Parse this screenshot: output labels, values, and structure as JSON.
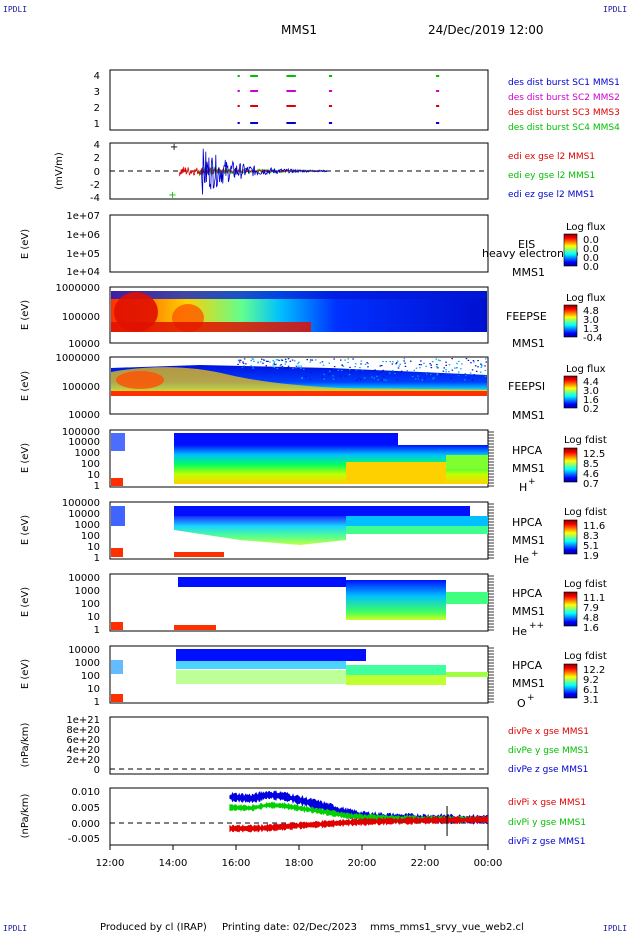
{
  "header": {
    "corner_tl": "IPDLI",
    "corner_tr": "IPDLI",
    "corner_bl": "IPDLI",
    "corner_br": "IPDLI",
    "mission": "MMS1",
    "datetime": "24/Dec/2019 12:00"
  },
  "footer": {
    "produced": "Produced by cl (IRAP)",
    "printed": "Printing date: 02/Dec/2023",
    "script": "mms_mms1_srvy_vue_web2.cl"
  },
  "colors": {
    "red": "#e00000",
    "green": "#00c000",
    "blue": "#0000d0",
    "magenta": "#d000d0",
    "black": "#000000"
  },
  "chart_data": {
    "type": "multi-panel time series / spectrogram",
    "x_ticks": [
      "12:00",
      "14:00",
      "16:00",
      "18:00",
      "20:00",
      "22:00",
      "00:00"
    ],
    "x_hours": [
      12,
      14,
      16,
      18,
      20,
      22,
      24
    ],
    "panels": [
      {
        "id": "burst",
        "type": "scatter",
        "ylabel": "",
        "yticks": [
          "4",
          "3",
          "2",
          "1"
        ],
        "legend": [
          {
            "label": "des dist burst SC1 MMS1",
            "color": "#0000d0"
          },
          {
            "label": "des dist burst SC2 MMS2",
            "color": "#d000d0"
          },
          {
            "label": "des dist burst SC3 MMS3",
            "color": "#e00000"
          },
          {
            "label": "des dist burst SC4 MMS4",
            "color": "#00c000"
          }
        ],
        "intervals_hours": [
          [
            16.05,
            16.12
          ],
          [
            16.45,
            16.7
          ],
          [
            17.6,
            17.9
          ],
          [
            18.95,
            19.05
          ],
          [
            22.35,
            22.45
          ]
        ]
      },
      {
        "id": "edi",
        "type": "line",
        "ylabel": "(mV/m)",
        "yticks": [
          "4",
          "2",
          "0",
          "-2",
          "-4"
        ],
        "ylim": [
          -4,
          4
        ],
        "legend": [
          {
            "label": "edi ex gse l2 MMS1",
            "color": "#e00000"
          },
          {
            "label": "edi ey gse l2 MMS1",
            "color": "#00c000"
          },
          {
            "label": "edi ez gse l2 MMS1",
            "color": "#0000d0"
          }
        ]
      },
      {
        "id": "eis",
        "type": "heatmap",
        "ylabel": "E (eV)",
        "yticks": [
          "1e+07",
          "1e+06",
          "1e+05",
          "1e+04"
        ],
        "side_labels": [
          "EIS",
          "heavy electron to",
          "MMS1"
        ],
        "cbar_title": "Log flux",
        "cbar_ticks": [
          "0.0",
          "0.0",
          "0.0",
          "0.0"
        ]
      },
      {
        "id": "feepse",
        "type": "heatmap",
        "ylabel": "E (eV)",
        "yticks": [
          "1000000",
          "100000",
          "10000"
        ],
        "side_labels": [
          "FEEPSE",
          "MMS1"
        ],
        "cbar_title": "Log flux",
        "cbar_ticks": [
          "4.8",
          "3.0",
          "1.3",
          "-0.4"
        ]
      },
      {
        "id": "feepsi",
        "type": "heatmap",
        "ylabel": "E (eV)",
        "yticks": [
          "1000000",
          "100000",
          "10000"
        ],
        "side_labels": [
          "FEEPSI",
          "MMS1"
        ],
        "cbar_title": "Log flux",
        "cbar_ticks": [
          "4.4",
          "3.0",
          "1.6",
          "0.2"
        ]
      },
      {
        "id": "hpca_h",
        "type": "heatmap",
        "ylabel": "E (eV)",
        "yticks": [
          "100000",
          "10000",
          "1000",
          "100",
          "10",
          "1"
        ],
        "side_labels": [
          "HPCA",
          "MMS1",
          "H",
          "+"
        ],
        "cbar_title": "Log fdist",
        "cbar_ticks": [
          "12.5",
          "8.5",
          "4.6",
          "0.7"
        ]
      },
      {
        "id": "hpca_he",
        "type": "heatmap",
        "ylabel": "E (eV)",
        "yticks": [
          "100000",
          "10000",
          "1000",
          "100",
          "10",
          "1"
        ],
        "side_labels": [
          "HPCA",
          "MMS1",
          "He",
          "+"
        ],
        "cbar_title": "Log fdist",
        "cbar_ticks": [
          "11.6",
          "8.3",
          "5.1",
          "1.9"
        ]
      },
      {
        "id": "hpca_he2",
        "type": "heatmap",
        "ylabel": "E (eV)",
        "yticks": [
          "10000",
          "1000",
          "100",
          "10",
          "1"
        ],
        "side_labels": [
          "HPCA",
          "MMS1",
          "He",
          "++"
        ],
        "cbar_title": "Log fdist",
        "cbar_ticks": [
          "11.1",
          "7.9",
          "4.8",
          "1.6"
        ]
      },
      {
        "id": "hpca_o",
        "type": "heatmap",
        "ylabel": "E (eV)",
        "yticks": [
          "10000",
          "1000",
          "100",
          "10",
          "1"
        ],
        "side_labels": [
          "HPCA",
          "MMS1",
          "O",
          "+"
        ],
        "cbar_title": "Log fdist",
        "cbar_ticks": [
          "12.2",
          "9.2",
          "6.1",
          "3.1"
        ]
      },
      {
        "id": "divpe",
        "type": "line",
        "ylabel": "(nPa/km)",
        "yticks": [
          "1e+21",
          "8e+20",
          "6e+20",
          "4e+20",
          "2e+20",
          "0"
        ],
        "legend": [
          {
            "label": "divPe x gse MMS1",
            "color": "#e00000"
          },
          {
            "label": "divPe y gse MMS1",
            "color": "#00c000"
          },
          {
            "label": "divPe z gse MMS1",
            "color": "#0000d0"
          }
        ]
      },
      {
        "id": "divpi",
        "type": "line",
        "ylabel": "(nPa/km)",
        "yticks": [
          "0.010",
          "0.005",
          "0.000",
          "-0.005"
        ],
        "ylim": [
          -0.0085,
          0.0105
        ],
        "legend": [
          {
            "label": "divPi x gse MMS1",
            "color": "#e00000"
          },
          {
            "label": "divPi y gse MMS1",
            "color": "#00c000"
          },
          {
            "label": "divPi z gse MMS1",
            "color": "#0000d0"
          }
        ],
        "trend_x_hours": [
          15.8,
          16.5,
          17.0,
          17.5,
          18.0,
          18.5,
          19.0,
          19.5,
          20.0,
          21.0,
          22.0,
          22.7,
          23.0,
          24.0
        ],
        "trend_blue": [
          0.0075,
          0.007,
          0.0082,
          0.0078,
          0.0065,
          0.0052,
          0.0038,
          0.0022,
          0.0012,
          0.0005,
          0.0003,
          0.0002,
          0.0001,
          0.0
        ],
        "trend_green": [
          0.004,
          0.0038,
          0.0048,
          0.0046,
          0.0038,
          0.003,
          0.0022,
          0.0013,
          0.0008,
          0.0004,
          0.0002,
          0.0001,
          0.0001,
          0.0
        ],
        "trend_red": [
          -0.003,
          -0.003,
          -0.0028,
          -0.0024,
          -0.002,
          -0.0017,
          -0.0014,
          -0.001,
          -0.0008,
          -0.0005,
          -0.0003,
          -0.0002,
          -0.0002,
          0.0
        ]
      }
    ]
  }
}
